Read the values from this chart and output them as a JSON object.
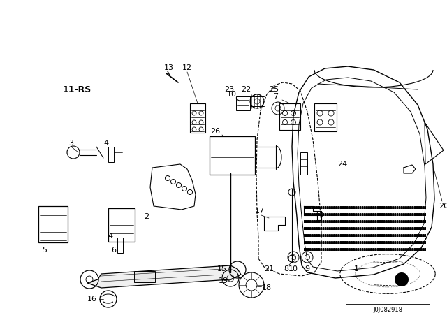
{
  "bg_color": "#ffffff",
  "line_color": "#000000",
  "fig_width": 6.4,
  "fig_height": 4.48,
  "dpi": 100,
  "diagram_code": "J0J082918"
}
